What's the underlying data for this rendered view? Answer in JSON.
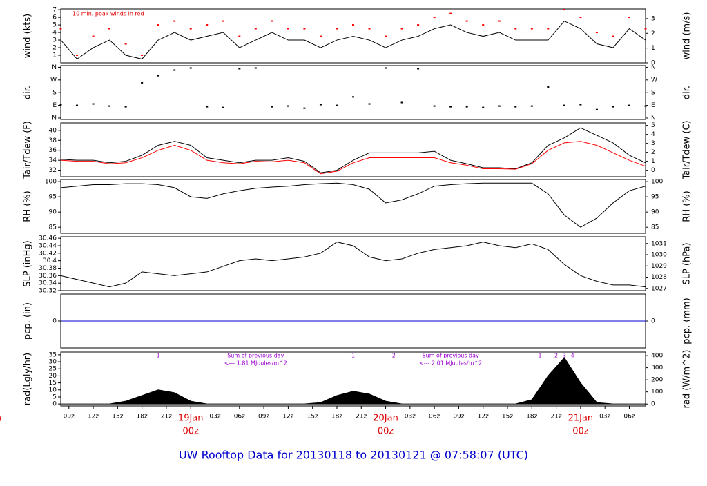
{
  "title": "UW Rooftop Data for 20130118  to  20130121 @ 07:58:07  (UTC)",
  "time_axis": {
    "xlim": [
      "18Jan 08z",
      "21Jan 08z"
    ],
    "x": [
      "18Jan 08z",
      "18Jan 10z",
      "18Jan 12z",
      "18Jan 14z",
      "18Jan 16z",
      "18Jan 18z",
      "18Jan 20z",
      "18Jan 22z",
      "19Jan 00z",
      "19Jan 02z",
      "19Jan 04z",
      "19Jan 06z",
      "19Jan 08z",
      "19Jan 10z",
      "19Jan 12z",
      "19Jan 14z",
      "19Jan 16z",
      "19Jan 18z",
      "19Jan 20z",
      "19Jan 22z",
      "20Jan 00z",
      "20Jan 02z",
      "20Jan 04z",
      "20Jan 06z",
      "20Jan 08z",
      "20Jan 10z",
      "20Jan 12z",
      "20Jan 14z",
      "20Jan 16z",
      "20Jan 18z",
      "20Jan 20z",
      "20Jan 22z",
      "21Jan 00z",
      "21Jan 02z",
      "21Jan 04z",
      "21Jan 06z",
      "21Jan 08z"
    ],
    "xticks": [
      {
        "value": "18Jan 00z",
        "label": "an",
        "sublabel": "z"
      },
      {
        "value": "18Jan 09z",
        "label": "09z"
      },
      {
        "value": "18Jan 12z",
        "label": "12z"
      },
      {
        "value": "18Jan 15z",
        "label": "15z"
      },
      {
        "value": "18Jan 18z",
        "label": "18z"
      },
      {
        "value": "18Jan 21z",
        "label": "21z"
      },
      {
        "value": "19Jan 00z",
        "label": "19Jan",
        "sublabel": "00z"
      },
      {
        "value": "19Jan 03z",
        "label": "03z"
      },
      {
        "value": "19Jan 06z",
        "label": "06z"
      },
      {
        "value": "19Jan 09z",
        "label": "09z"
      },
      {
        "value": "19Jan 12z",
        "label": "12z"
      },
      {
        "value": "19Jan 15z",
        "label": "15z"
      },
      {
        "value": "19Jan 18z",
        "label": "18z"
      },
      {
        "value": "19Jan 21z",
        "label": "21z"
      },
      {
        "value": "20Jan 00z",
        "label": "20Jan",
        "sublabel": "00z"
      },
      {
        "value": "20Jan 03z",
        "label": "03z"
      },
      {
        "value": "20Jan 06z",
        "label": "06z"
      },
      {
        "value": "20Jan 09z",
        "label": "09z"
      },
      {
        "value": "20Jan 12z",
        "label": "12z"
      },
      {
        "value": "20Jan 15z",
        "label": "15z"
      },
      {
        "value": "20Jan 18z",
        "label": "18z"
      },
      {
        "value": "20Jan 21z",
        "label": "21z"
      },
      {
        "value": "21Jan 00z",
        "label": "21Jan",
        "sublabel": "00z"
      },
      {
        "value": "21Jan 03z",
        "label": "03z"
      },
      {
        "value": "21Jan 06z",
        "label": "06z"
      }
    ]
  },
  "chart_data": [
    {
      "type": "line",
      "ylabel": "wind (kts)",
      "y2label": "wind (m/s)",
      "annotation": "10 min. peak winds in red",
      "ylim": [
        0,
        7.1
      ],
      "yticks": [
        1,
        2,
        3,
        4,
        5,
        6,
        7
      ],
      "y2lim": [
        0,
        3.65
      ],
      "y2ticks": [
        0,
        1,
        2,
        3
      ],
      "series": [
        {
          "name": "wind",
          "color": "#000000",
          "style": "line",
          "values": [
            3,
            0.5,
            2,
            3,
            1,
            0.5,
            3,
            4,
            3,
            3.5,
            4,
            2,
            3,
            4,
            3,
            3,
            2,
            3,
            3.5,
            3,
            2,
            3,
            3.5,
            4.5,
            5,
            4,
            3.5,
            4,
            3,
            3,
            3,
            5.5,
            4.5,
            2.5,
            2,
            4.5,
            3
          ]
        },
        {
          "name": "peak",
          "color": "#ff0000",
          "style": "dots",
          "values": [
            4.5,
            1,
            3.5,
            4.5,
            2.5,
            1,
            5,
            5.5,
            4.5,
            5,
            5.5,
            3.5,
            4.5,
            5.5,
            4.5,
            4.5,
            3.5,
            4.5,
            5,
            4.5,
            3.5,
            4.5,
            5,
            6,
            6.5,
            5.5,
            5,
            5.5,
            4.5,
            4.5,
            4.5,
            7,
            6,
            4,
            3.5,
            6,
            4.5
          ]
        }
      ]
    },
    {
      "type": "scatter",
      "ylabel": "dir.",
      "y2label": "dir.",
      "ylim": [
        -10,
        372
      ],
      "yticks": [
        {
          "value": 0,
          "label": "N"
        },
        {
          "value": 90,
          "label": "E"
        },
        {
          "value": 180,
          "label": "S"
        },
        {
          "value": 270,
          "label": "W"
        },
        {
          "value": 360,
          "label": "N"
        }
      ],
      "y2lim": [
        -10,
        372
      ],
      "y2ticks": [
        {
          "value": 0,
          "label": "N"
        },
        {
          "value": 90,
          "label": "E"
        },
        {
          "value": 180,
          "label": "S"
        },
        {
          "value": 270,
          "label": "W"
        },
        {
          "value": 360,
          "label": "N"
        }
      ],
      "series": [
        {
          "name": "direction",
          "color": "#000000",
          "values": [
            95,
            90,
            100,
            85,
            80,
            250,
            300,
            340,
            355,
            80,
            75,
            350,
            355,
            80,
            85,
            70,
            95,
            90,
            150,
            100,
            355,
            110,
            350,
            85,
            80,
            80,
            75,
            85,
            80,
            85,
            220,
            90,
            95,
            60,
            80,
            90,
            85
          ]
        }
      ]
    },
    {
      "type": "line",
      "ylabel": "Tair/Tdew (F)",
      "y2label": "Tair/Tdew (C)",
      "ylim": [
        30.7,
        41.5
      ],
      "yticks": [
        32,
        34,
        36,
        38,
        40
      ],
      "y2lim": [
        -0.72,
        5.28
      ],
      "y2ticks": [
        0,
        1,
        2,
        3,
        4,
        5
      ],
      "series": [
        {
          "name": "Tair",
          "color": "#000000",
          "style": "line",
          "values": [
            34.2,
            34,
            34,
            33.5,
            33.8,
            35,
            37,
            37.8,
            37,
            34.5,
            34,
            33.5,
            34,
            34,
            34.5,
            33.8,
            31.5,
            32,
            34,
            35.5,
            35.5,
            35.5,
            35.5,
            35.8,
            34,
            33.3,
            32.5,
            32.5,
            32.3,
            33.5,
            37,
            38.5,
            40.5,
            39,
            37.5,
            35,
            33.5
          ]
        },
        {
          "name": "Tdew",
          "color": "#ff0000",
          "style": "line",
          "values": [
            34,
            33.8,
            33.8,
            33.3,
            33.5,
            34.5,
            36,
            37,
            36,
            34,
            33.5,
            33.3,
            33.8,
            33.7,
            34,
            33.5,
            31.3,
            31.8,
            33.5,
            34.5,
            34.5,
            34.5,
            34.5,
            34.5,
            33.5,
            33,
            32.3,
            32.3,
            32.2,
            33.3,
            36,
            37.5,
            37.8,
            37,
            35.5,
            34,
            32.8
          ]
        }
      ]
    },
    {
      "type": "line",
      "ylabel": "RH (%)",
      "y2label": "RH (%)",
      "ylim": [
        83,
        100.7
      ],
      "yticks": [
        85,
        90,
        95,
        100
      ],
      "y2lim": [
        83,
        100.7
      ],
      "y2ticks": [
        85,
        90,
        95,
        100
      ],
      "series": [
        {
          "name": "RH",
          "color": "#000000",
          "style": "line",
          "values": [
            98,
            98.5,
            99,
            99,
            99.3,
            99.3,
            99,
            98,
            95,
            94.5,
            96,
            97,
            97.8,
            98.2,
            98.5,
            99,
            99.3,
            99.5,
            99,
            97.5,
            93,
            94,
            96,
            98.5,
            99,
            99.3,
            99.5,
            99.5,
            99.5,
            99.5,
            96,
            89,
            85,
            88,
            93,
            97,
            98.5
          ]
        }
      ]
    },
    {
      "type": "line",
      "ylabel": "SLP (inHg)",
      "y2label": "SLP (hPa)",
      "ylim": [
        30.32,
        30.464
      ],
      "yticks": [
        30.32,
        30.34,
        30.36,
        30.38,
        30.4,
        30.42,
        30.44,
        30.46
      ],
      "y2lim": [
        1026.8,
        1031.6
      ],
      "y2ticks": [
        1027,
        1028,
        1029,
        1030,
        1031
      ],
      "series": [
        {
          "name": "SLP",
          "color": "#000000",
          "style": "line",
          "values": [
            30.36,
            30.35,
            30.34,
            30.33,
            30.34,
            30.37,
            30.365,
            30.36,
            30.365,
            30.37,
            30.385,
            30.4,
            30.405,
            30.4,
            30.405,
            30.41,
            30.42,
            30.45,
            30.44,
            30.41,
            30.4,
            30.405,
            30.42,
            30.43,
            30.435,
            30.44,
            30.45,
            30.44,
            30.435,
            30.445,
            30.43,
            30.39,
            30.36,
            30.345,
            30.335,
            30.335,
            30.33
          ]
        }
      ]
    },
    {
      "type": "line",
      "ylabel": "pcp. (in)",
      "y2label": "pcp. (mm)",
      "ylim": [
        -1,
        1
      ],
      "yticks": [
        0
      ],
      "y2lim": [
        -1,
        1
      ],
      "y2ticks": [
        0
      ],
      "series": [
        {
          "name": "pcp",
          "color": "#0000cc",
          "style": "line",
          "values": [
            0,
            0,
            0,
            0,
            0,
            0,
            0,
            0,
            0,
            0,
            0,
            0,
            0,
            0,
            0,
            0,
            0,
            0,
            0,
            0,
            0,
            0,
            0,
            0,
            0,
            0,
            0,
            0,
            0,
            0,
            0,
            0,
            0,
            0,
            0,
            0,
            0
          ]
        }
      ]
    },
    {
      "type": "area",
      "ylabel": "rad(Lgly/hr)",
      "y2label": "rad (W/m^2)",
      "ylim": [
        -1.4,
        36.9
      ],
      "yticks": [
        0,
        5,
        10,
        15,
        20,
        25,
        30,
        35
      ],
      "y2lim": [
        -16,
        429
      ],
      "y2ticks": [
        0,
        100,
        200,
        300,
        400
      ],
      "series": [
        {
          "name": "rad",
          "color": "#000000",
          "values": [
            0,
            0,
            0,
            0,
            2,
            6,
            10,
            8,
            2,
            0,
            0,
            0,
            0,
            0,
            0,
            0,
            1,
            6,
            9,
            7,
            2,
            0,
            0,
            0,
            0,
            0,
            0,
            0,
            0,
            3,
            20,
            33,
            15,
            1,
            0,
            0,
            0
          ]
        }
      ],
      "annotations": [
        {
          "x": "18Jan 20z",
          "lines": [
            "1"
          ]
        },
        {
          "x": "19Jan 08z",
          "lines": [
            "Sum of previous day",
            "<--- 1.81 MJoules/m^2"
          ]
        },
        {
          "x": "19Jan 20z",
          "lines": [
            "1"
          ]
        },
        {
          "x": "20Jan 01z",
          "lines": [
            "2"
          ]
        },
        {
          "x": "20Jan 08z",
          "lines": [
            "Sum of previous day",
            "<--- 2.01 MJoules/m^2"
          ]
        },
        {
          "x": "20Jan 19z",
          "lines": [
            "1"
          ]
        },
        {
          "x": "20Jan 21z",
          "lines": [
            "2"
          ]
        },
        {
          "x": "20Jan 22z",
          "lines": [
            "3"
          ]
        },
        {
          "x": "20Jan 23z",
          "lines": [
            "4"
          ]
        }
      ]
    }
  ]
}
